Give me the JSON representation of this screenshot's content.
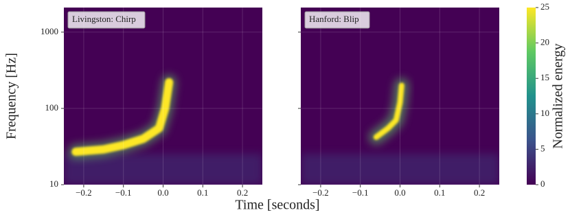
{
  "chart_data": [
    {
      "type": "spectrogram",
      "title": "Livingston: Chirp",
      "xlabel": "Time [seconds]",
      "ylabel": "Frequency [Hz]",
      "xlim": [
        -0.25,
        0.25
      ],
      "xticks": [
        {
          "value": -0.2,
          "label": "−0.2"
        },
        {
          "value": -0.1,
          "label": "−0.1"
        },
        {
          "value": 0,
          "label": "0.0"
        },
        0.1,
        0.2
      ],
      "ylim": [
        10,
        2100
      ],
      "yticks": [
        10,
        100,
        1000
      ],
      "y_scale": "log",
      "grid": true,
      "track": {
        "x": [
          -0.22,
          -0.15,
          -0.1,
          -0.05,
          -0.01,
          0.005,
          0.015
        ],
        "y": [
          27,
          29,
          33,
          40,
          55,
          100,
          220
        ]
      }
    },
    {
      "type": "spectrogram",
      "title": "Hanford: Blip",
      "xlim": [
        -0.25,
        0.25
      ],
      "xticks": [
        {
          "value": -0.2,
          "label": "−0.2"
        },
        {
          "value": -0.1,
          "label": "−0.1"
        },
        {
          "value": 0,
          "label": "0.0"
        },
        0.1,
        0.2
      ],
      "ylim": [
        10,
        2100
      ],
      "yticks": [
        10,
        100,
        1000
      ],
      "y_scale": "log",
      "grid": true,
      "track": {
        "x": [
          -0.06,
          -0.03,
          -0.01,
          0,
          0.004
        ],
        "y": [
          42,
          55,
          70,
          120,
          200
        ]
      }
    },
    {
      "type": "colorbar",
      "label": "Normalized energy",
      "clim": [
        0,
        25
      ],
      "ticks": [
        0,
        5,
        10,
        15,
        20,
        25
      ],
      "colors": [
        "#440154",
        "#3b528b",
        "#21918c",
        "#5ec962",
        "#fde725"
      ]
    }
  ]
}
